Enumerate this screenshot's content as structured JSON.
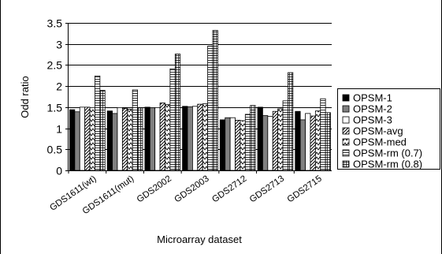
{
  "chart_data": {
    "type": "bar",
    "title": "",
    "xlabel": "Microarray dataset",
    "ylabel": "Odd ratio",
    "ylim": [
      0,
      3.5
    ],
    "yticks": [
      "0",
      "0.5",
      "1",
      "1.5",
      "2",
      "2.5",
      "3",
      "3.5"
    ],
    "categories": [
      "GDS1611(wt)",
      "GDS1611(mut)",
      "GDS2002",
      "GDS2003",
      "GDS2712",
      "GDS2713",
      "GDS2715"
    ],
    "grid": "horizontal",
    "legend_position": "right",
    "series": [
      {
        "name": "OPSM-1",
        "pattern": "solid-black",
        "values": [
          1.44,
          1.41,
          1.5,
          1.52,
          1.2,
          1.5,
          1.4
        ]
      },
      {
        "name": "OPSM-2",
        "pattern": "solid-gray",
        "values": [
          1.39,
          1.35,
          1.49,
          1.51,
          1.25,
          1.3,
          1.2
        ]
      },
      {
        "name": "OPSM-3",
        "pattern": "white",
        "values": [
          1.5,
          1.49,
          1.49,
          1.52,
          1.25,
          1.28,
          1.35
        ]
      },
      {
        "name": "OPSM-avg",
        "pattern": "diagonal-hatch",
        "values": [
          1.5,
          1.47,
          1.6,
          1.57,
          1.19,
          1.4,
          1.29
        ]
      },
      {
        "name": "OPSM-med",
        "pattern": "zigzag",
        "values": [
          1.49,
          1.45,
          1.56,
          1.58,
          1.18,
          1.46,
          1.41
        ]
      },
      {
        "name": "OPSM-rm (0.7)",
        "pattern": "horizontal-lines",
        "values": [
          2.24,
          1.91,
          2.41,
          2.95,
          1.33,
          1.65,
          1.7
        ]
      },
      {
        "name": "OPSM-rm (0.8)",
        "pattern": "grid",
        "values": [
          1.9,
          1.48,
          2.76,
          3.32,
          1.54,
          2.32,
          1.37
        ]
      }
    ],
    "colors": {
      "grid": "#000000",
      "bar_outline": "#000000",
      "gray_fill": "#808080",
      "background": "#ffffff"
    }
  }
}
